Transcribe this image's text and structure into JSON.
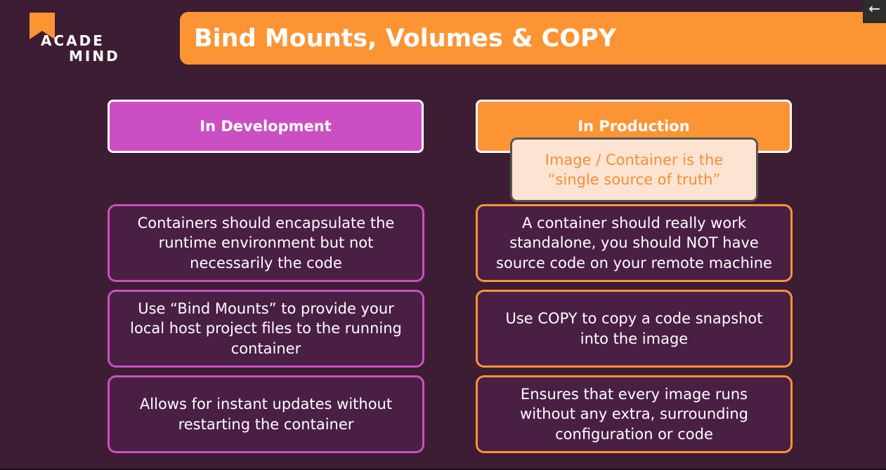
{
  "logo": {
    "line1": "ACADE",
    "line2": "MIND",
    "colors": {
      "mark": "#fd9434",
      "text": "#ffffff"
    }
  },
  "title": "Bind Mounts, Volumes & COPY",
  "back_button": {
    "icon": "arrow-left-icon",
    "glyph": "←"
  },
  "development": {
    "header": "In Development",
    "items": [
      "Containers should encapsulate the\nruntime environment but not\nnecessarily the code",
      "Use “Bind Mounts” to provide your\nlocal host project files to the running\ncontainer",
      "Allows for instant updates without\nrestarting the container"
    ]
  },
  "production": {
    "header": "In Production",
    "callout": "Image / Container is the\n“single source of truth”",
    "items": [
      "A container should really work\nstandalone, you should NOT have\nsource code on your remote machine",
      "Use COPY to copy a code snapshot\ninto the image",
      "Ensures that every image runs\nwithout any extra, surrounding\nconfiguration or code"
    ]
  },
  "colors": {
    "background": "#3d1d33",
    "accent_orange": "#fd9434",
    "accent_magenta": "#cb4fc3",
    "card_fill": "#4a1f44",
    "callout_fill": "#fde4d2"
  }
}
